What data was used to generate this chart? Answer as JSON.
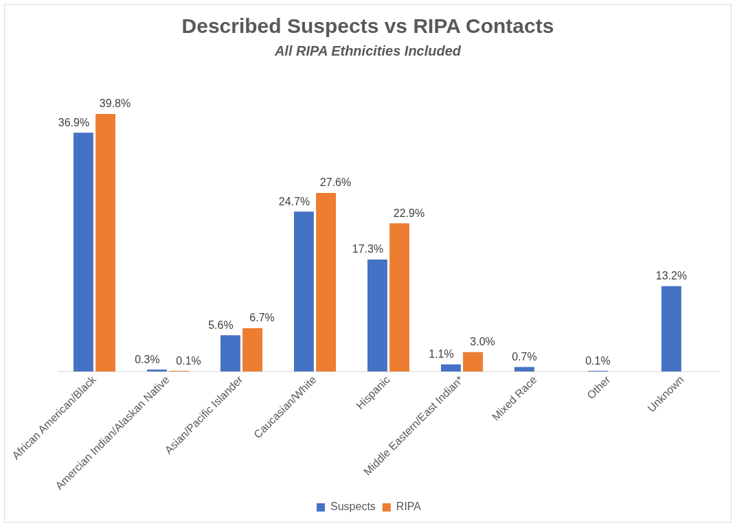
{
  "chart_data": {
    "type": "bar",
    "title": "Described Suspects vs RIPA Contacts",
    "subtitle": "All RIPA Ethnicities Included",
    "categories": [
      "African American/Black",
      "Amercian Indian/Alaskan Native",
      "Asian/Pacific Islander",
      "Caucasian/White",
      "Hispanic",
      "Middle Eastern/East Indian*",
      "Mixed Race",
      "Other",
      "Unknown"
    ],
    "series": [
      {
        "name": "Suspects",
        "color": "#4472c4",
        "values": [
          36.9,
          0.3,
          5.6,
          24.7,
          17.3,
          1.1,
          0.7,
          0.1,
          13.2
        ],
        "value_labels": [
          "36.9%",
          "0.3%",
          "5.6%",
          "24.7%",
          "17.3%",
          "1.1%",
          "0.7%",
          "0.1%",
          "13.2%"
        ]
      },
      {
        "name": "RIPA",
        "color": "#ed7d31",
        "values": [
          39.8,
          0.1,
          6.7,
          27.6,
          22.9,
          3.0,
          null,
          null,
          null
        ],
        "value_labels": [
          "39.8%",
          "0.1%",
          "6.7%",
          "27.6%",
          "22.9%",
          "3.0%",
          null,
          null,
          null
        ]
      }
    ],
    "legend": "bottom",
    "grid": false
  }
}
